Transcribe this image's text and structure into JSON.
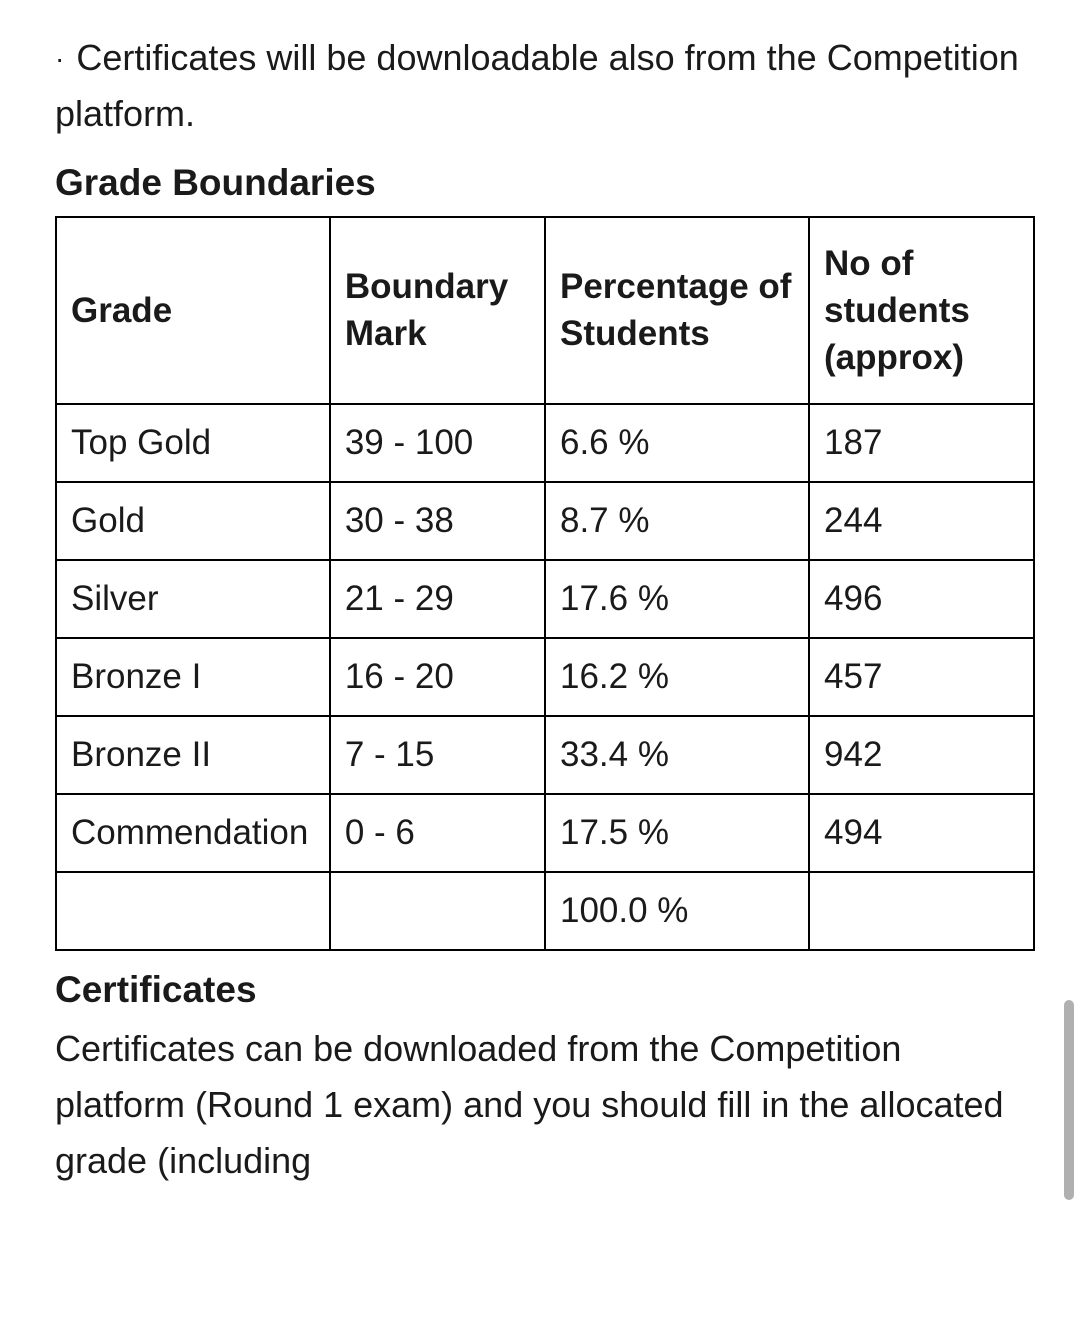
{
  "intro": {
    "bullet_text": "Certificates will be downloadable also from the Competition platform."
  },
  "grade_boundaries": {
    "heading": "Grade Boundaries",
    "columns": [
      "Grade",
      "Boundary Mark",
      "Percentage of Students",
      "No of students (approx)"
    ],
    "rows": [
      {
        "grade": "Top Gold",
        "boundary": "39 - 100",
        "percent": "6.6 %",
        "students": "187"
      },
      {
        "grade": "Gold",
        "boundary": "30 - 38",
        "percent": "8.7 %",
        "students": "244"
      },
      {
        "grade": "Silver",
        "boundary": "21 - 29",
        "percent": "17.6 %",
        "students": "496"
      },
      {
        "grade": "Bronze I",
        "boundary": "16 - 20",
        "percent": "16.2 %",
        "students": "457"
      },
      {
        "grade": "Bronze II",
        "boundary": "7 - 15",
        "percent": "33.4 %",
        "students": "942"
      },
      {
        "grade": "Commendation",
        "boundary": "0 - 6",
        "percent": "17.5 %",
        "students": "494"
      }
    ],
    "total_row": {
      "grade": "",
      "boundary": "",
      "percent": "100.0 %",
      "students": ""
    }
  },
  "certificates": {
    "heading": "Certificates",
    "text": "Certificates can be downloaded from the Competition platform (Round 1 exam) and you should fill in the allocated grade (including"
  },
  "colors": {
    "background": "#ffffff",
    "text": "#1a1a1a",
    "border": "#000000",
    "scrollbar": "#b0b0b0"
  }
}
